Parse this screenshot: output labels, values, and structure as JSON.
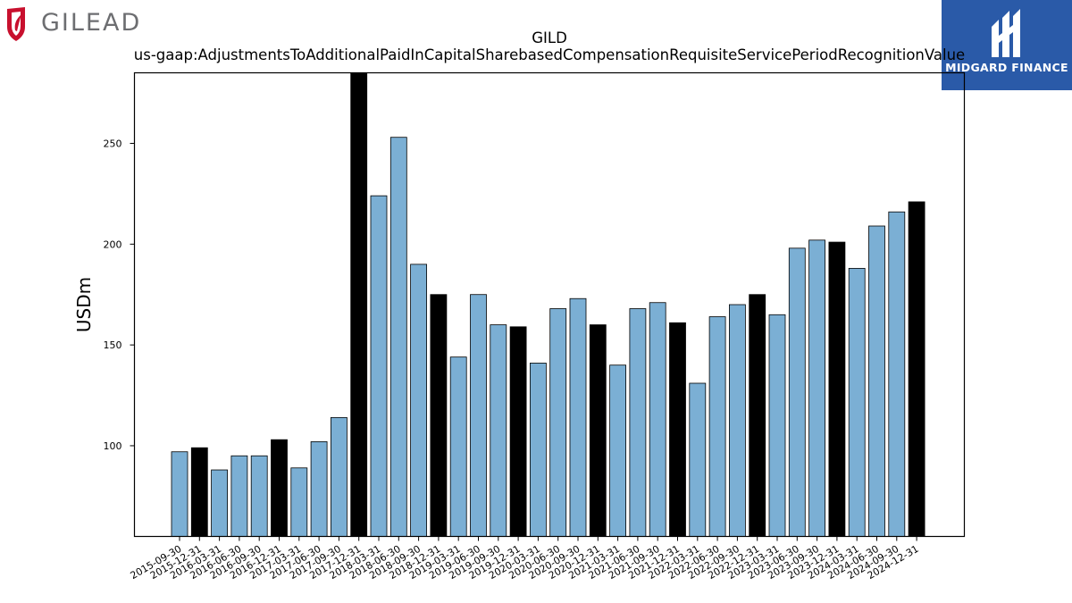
{
  "logos": {
    "left": {
      "text": "GILEAD",
      "icon": "gilead-logo-icon",
      "color": "#c8102e",
      "text_color": "#6d6e71"
    },
    "right": {
      "text": "MIDGARD FINANCE",
      "icon": "midgard-logo-icon",
      "background": "#2a5aa8"
    }
  },
  "chart_data": {
    "type": "bar",
    "title": "GILD",
    "subtitle": "us-gaap:AdjustmentsToAdditionalPaidInCapitalSharebasedCompensationRequisiteServicePeriodRecognitionValue",
    "xlabel": "",
    "ylabel": "USDm",
    "ylim": [
      55,
      285
    ],
    "yticks": [
      100,
      150,
      200,
      250
    ],
    "categories": [
      "2015-09-30",
      "2015-12-31",
      "2016-03-31",
      "2016-06-30",
      "2016-09-30",
      "2016-12-31",
      "2017-03-31",
      "2017-06-30",
      "2017-09-30",
      "2017-12-31",
      "2018-03-31",
      "2018-06-30",
      "2018-09-30",
      "2018-12-31",
      "2019-03-31",
      "2019-06-30",
      "2019-09-30",
      "2019-12-31",
      "2020-03-31",
      "2020-06-30",
      "2020-09-30",
      "2020-12-31",
      "2021-03-31",
      "2021-06-30",
      "2021-09-30",
      "2021-12-31",
      "2022-03-31",
      "2022-06-30",
      "2022-09-30",
      "2022-12-31",
      "2023-03-31",
      "2023-06-30",
      "2023-09-30",
      "2023-12-31",
      "2024-03-31",
      "2024-06-30",
      "2024-09-30",
      "2024-12-31"
    ],
    "values": [
      97,
      99,
      88,
      95,
      95,
      103,
      89,
      102,
      114,
      287,
      224,
      253,
      190,
      175,
      144,
      175,
      160,
      159,
      141,
      168,
      173,
      160,
      140,
      168,
      171,
      161,
      131,
      164,
      170,
      175,
      165,
      198,
      202,
      201,
      188,
      209,
      216,
      221
    ],
    "colors": {
      "quarter": "#7bafd4",
      "year_end": "#000000",
      "edge": "#000000"
    },
    "grid": false
  }
}
